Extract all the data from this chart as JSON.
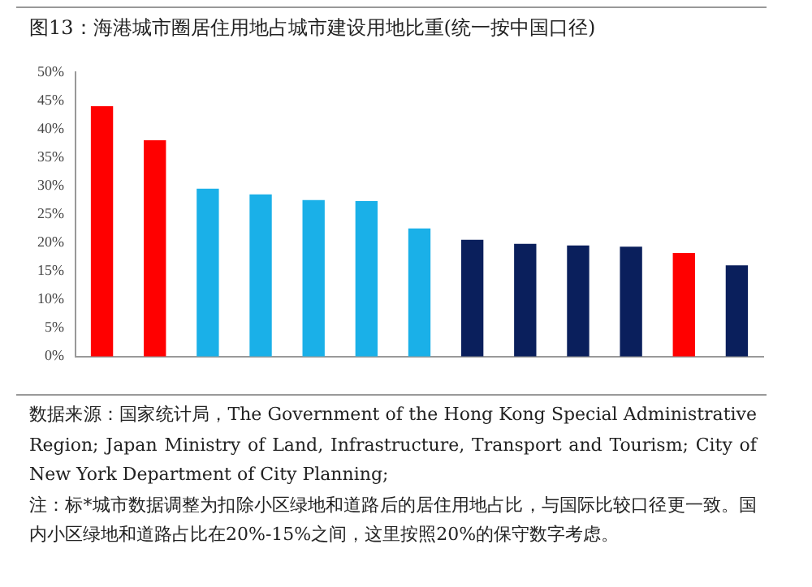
{
  "chart_data": {
    "type": "bar",
    "title": "图13：海港城市圈居住用地占城市建设用地比重(统一按中国口径)",
    "categories": [
      null,
      null,
      null,
      null,
      null,
      null,
      null,
      null,
      null,
      null,
      null,
      null,
      null
    ],
    "values": [
      44,
      38,
      29.5,
      28.5,
      27.5,
      27.3,
      22.5,
      20.5,
      19.8,
      19.5,
      19.3,
      18.2,
      16
    ],
    "colors": [
      "#ff0000",
      "#ff0000",
      "#1ab0e8",
      "#1ab0e8",
      "#1ab0e8",
      "#1ab0e8",
      "#1ab0e8",
      "#0a1f5c",
      "#0a1f5c",
      "#0a1f5c",
      "#0a1f5c",
      "#ff0000",
      "#0a1f5c"
    ],
    "ylim": [
      0,
      50
    ],
    "yticks": [
      {
        "value": 0,
        "label": "0%"
      },
      {
        "value": 5,
        "label": "5%"
      },
      {
        "value": 10,
        "label": "10%"
      },
      {
        "value": 15,
        "label": "15%"
      },
      {
        "value": 20,
        "label": "20%"
      },
      {
        "value": 25,
        "label": "25%"
      },
      {
        "value": 30,
        "label": "30%"
      },
      {
        "value": 35,
        "label": "35%"
      },
      {
        "value": 40,
        "label": "40%"
      },
      {
        "value": 45,
        "label": "45%"
      },
      {
        "value": 50,
        "label": "50%"
      }
    ],
    "grid": false,
    "legend": false,
    "annotations": [
      "数据来源：国家统计局，The Government of the Hong Kong Special Administrative Region; Japan Ministry of Land, Infrastructure, Transport and Tourism;  City of New York Department of City Planning;",
      "注：标*城市数据调整为扣除小区绿地和道路后的居住用地占比，与国际比较口径更一致。国内小区绿地和道路占比在20%-15%之间，这里按照20%的保守数字考虑。"
    ]
  }
}
